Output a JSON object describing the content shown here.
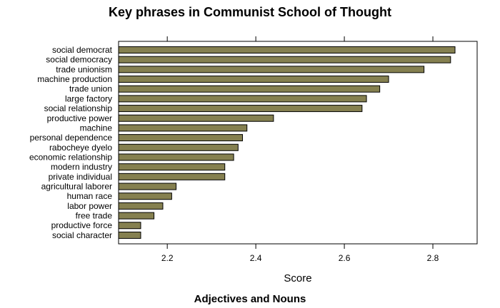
{
  "chart_data": {
    "type": "bar",
    "orientation": "horizontal",
    "title": "Key phrases in Communist School of Thought",
    "xlabel": "Score",
    "footer": "Adjectives and Nouns",
    "xlim": [
      2.09,
      2.9
    ],
    "xticks": [
      2.2,
      2.4,
      2.6,
      2.8
    ],
    "grid": false,
    "legend": "none",
    "bar_color": "#858050",
    "bar_edge_color": "#000000",
    "categories": [
      "social democrat",
      "social democracy",
      "trade unionism",
      "machine production",
      "trade union",
      "large factory",
      "social relationship",
      "productive power",
      "machine",
      "personal dependence",
      "rabocheye dyelo",
      "economic relationship",
      "modern industry",
      "private individual",
      "agricultural laborer",
      "human race",
      "labor power",
      "free trade",
      "productive force",
      "social character"
    ],
    "values": [
      2.85,
      2.84,
      2.78,
      2.7,
      2.68,
      2.65,
      2.64,
      2.44,
      2.38,
      2.37,
      2.36,
      2.35,
      2.33,
      2.33,
      2.22,
      2.21,
      2.19,
      2.17,
      2.14,
      2.14
    ]
  }
}
